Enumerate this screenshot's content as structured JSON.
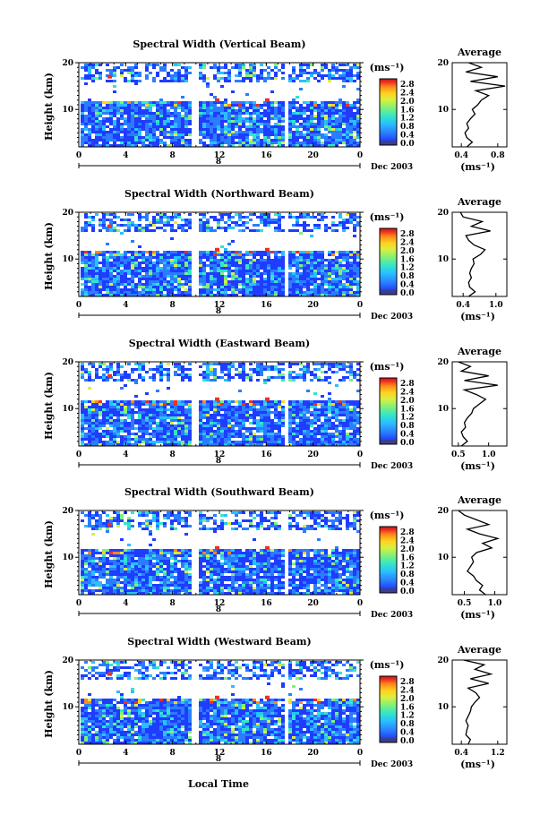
{
  "chart_data": [
    {
      "type": "heatmap",
      "title": "Spectral Width (Vertical Beam)",
      "ylabel": "Height (km)",
      "yticks": [
        "20",
        "10"
      ],
      "xticks": [
        "0",
        "4",
        "8",
        "12",
        "16",
        "20",
        "0"
      ],
      "date_label": "Dec 2003",
      "day_label": "8",
      "colorbar": {
        "unit": "(ms⁻¹)",
        "ticks": [
          "2.8",
          "2.4",
          "2.0",
          "1.6",
          "1.2",
          "0.8",
          "0.4",
          "0.0"
        ]
      },
      "profile": {
        "title": "Average",
        "xlabel": "(ms⁻¹)",
        "xticks": [
          "0.4",
          "0.8"
        ],
        "xlim": [
          0.3,
          0.9
        ],
        "yticks": [
          "20",
          "10"
        ],
        "heights": [
          2,
          3,
          4,
          5,
          6,
          7,
          8,
          9,
          10,
          11,
          12,
          13,
          14,
          15,
          16,
          17,
          18,
          19,
          20
        ],
        "values": [
          0.46,
          0.52,
          0.46,
          0.44,
          0.48,
          0.46,
          0.5,
          0.55,
          0.52,
          0.58,
          0.62,
          0.7,
          0.56,
          0.88,
          0.5,
          0.8,
          0.45,
          0.62,
          0.48
        ]
      }
    },
    {
      "type": "heatmap",
      "title": "Spectral Width (Northward Beam)",
      "ylabel": "Height (km)",
      "yticks": [
        "20",
        "10"
      ],
      "xticks": [
        "0",
        "4",
        "8",
        "12",
        "16",
        "20",
        "0"
      ],
      "date_label": "Dec 2003",
      "day_label": "8",
      "colorbar": {
        "unit": "(ms⁻¹)",
        "ticks": [
          "2.8",
          "2.4",
          "2.0",
          "1.6",
          "1.2",
          "0.8",
          "0.4",
          "0.0"
        ]
      },
      "profile": {
        "title": "Average",
        "xlabel": "(ms⁻¹)",
        "xticks": [
          "0.4",
          "1.0"
        ],
        "xlim": [
          0.2,
          1.2
        ],
        "yticks": [
          "20",
          "10"
        ],
        "heights": [
          2,
          3,
          4,
          5,
          6,
          7,
          8,
          9,
          10,
          11,
          12,
          13,
          14,
          15,
          16,
          17,
          18,
          19,
          20
        ],
        "values": [
          0.5,
          0.62,
          0.52,
          0.5,
          0.55,
          0.52,
          0.55,
          0.6,
          0.58,
          0.72,
          0.8,
          0.6,
          0.5,
          0.45,
          0.9,
          0.55,
          0.75,
          0.4,
          0.35
        ]
      }
    },
    {
      "type": "heatmap",
      "title": "Spectral Width (Eastward Beam)",
      "ylabel": "Height (km)",
      "yticks": [
        "20",
        "10"
      ],
      "xticks": [
        "0",
        "4",
        "8",
        "12",
        "16",
        "20",
        "0"
      ],
      "date_label": "Dec 2003",
      "day_label": "8",
      "colorbar": {
        "unit": "(ms⁻¹)",
        "ticks": [
          "2.8",
          "2.4",
          "2.0",
          "1.6",
          "1.2",
          "0.8",
          "0.4",
          "0.0"
        ]
      },
      "profile": {
        "title": "Average",
        "xlabel": "(ms⁻¹)",
        "xticks": [
          "0.5",
          "1.0"
        ],
        "xlim": [
          0.4,
          1.3
        ],
        "yticks": [
          "20",
          "10"
        ],
        "heights": [
          2,
          3,
          4,
          5,
          6,
          7,
          8,
          9,
          10,
          11,
          12,
          13,
          14,
          15,
          16,
          17,
          18,
          19,
          20
        ],
        "values": [
          0.55,
          0.65,
          0.58,
          0.55,
          0.62,
          0.6,
          0.65,
          0.72,
          0.75,
          0.85,
          0.95,
          0.8,
          0.6,
          1.15,
          0.6,
          1.0,
          0.55,
          0.7,
          0.5
        ]
      }
    },
    {
      "type": "heatmap",
      "title": "Spectral Width (Southward Beam)",
      "ylabel": "Height (km)",
      "yticks": [
        "20",
        "10"
      ],
      "xticks": [
        "0",
        "4",
        "8",
        "12",
        "16",
        "20",
        "0"
      ],
      "date_label": "Dec 2003",
      "day_label": "8",
      "colorbar": {
        "unit": "(ms⁻¹)",
        "ticks": [
          "2.8",
          "2.4",
          "2.0",
          "1.6",
          "1.2",
          "0.8",
          "0.4",
          "0.0"
        ]
      },
      "profile": {
        "title": "Average",
        "xlabel": "(ms⁻¹)",
        "xticks": [
          "0.5",
          "1.0"
        ],
        "xlim": [
          0.3,
          1.2
        ],
        "yticks": [
          "20",
          "10"
        ],
        "heights": [
          2,
          3,
          4,
          5,
          6,
          7,
          8,
          9,
          10,
          11,
          12,
          13,
          14,
          15,
          16,
          17,
          18,
          19,
          20
        ],
        "values": [
          0.85,
          0.75,
          0.8,
          0.7,
          0.65,
          0.55,
          0.6,
          0.65,
          0.62,
          0.7,
          0.95,
          0.8,
          1.05,
          0.75,
          0.55,
          0.9,
          0.7,
          0.5,
          0.4
        ]
      }
    },
    {
      "type": "heatmap",
      "title": "Spectral Width (Westward Beam)",
      "ylabel": "Height (km)",
      "yticks": [
        "20",
        "10"
      ],
      "xticks": [
        "0",
        "4",
        "8",
        "12",
        "16",
        "20",
        "0"
      ],
      "date_label": "Dec 2003",
      "day_label": "8",
      "colorbar": {
        "unit": "(ms⁻¹)",
        "ticks": [
          "2.8",
          "2.4",
          "2.0",
          "1.6",
          "1.2",
          "0.8",
          "0.4",
          "0.0"
        ]
      },
      "profile": {
        "title": "Average",
        "xlabel": "(ms⁻¹)",
        "xticks": [
          "0.4",
          "1.2"
        ],
        "xlim": [
          0.2,
          1.4
        ],
        "yticks": [
          "20",
          "10"
        ],
        "heights": [
          2,
          3,
          4,
          5,
          6,
          7,
          8,
          9,
          10,
          11,
          12,
          13,
          14,
          15,
          16,
          17,
          18,
          19,
          20
        ],
        "values": [
          0.55,
          0.6,
          0.5,
          0.52,
          0.55,
          0.5,
          0.55,
          0.6,
          0.62,
          0.7,
          0.8,
          0.72,
          0.55,
          1.0,
          0.6,
          1.05,
          0.7,
          0.9,
          0.45
        ]
      }
    }
  ],
  "footer": {
    "xlabel": "Local Time"
  },
  "colors": {
    "scale": [
      "#3a3f8c",
      "#1f3cff",
      "#2a7dff",
      "#29bfff",
      "#33e6c8",
      "#7ff07a",
      "#d8f040",
      "#ffd21e",
      "#ff8a1a",
      "#f03020",
      "#c41818"
    ]
  }
}
